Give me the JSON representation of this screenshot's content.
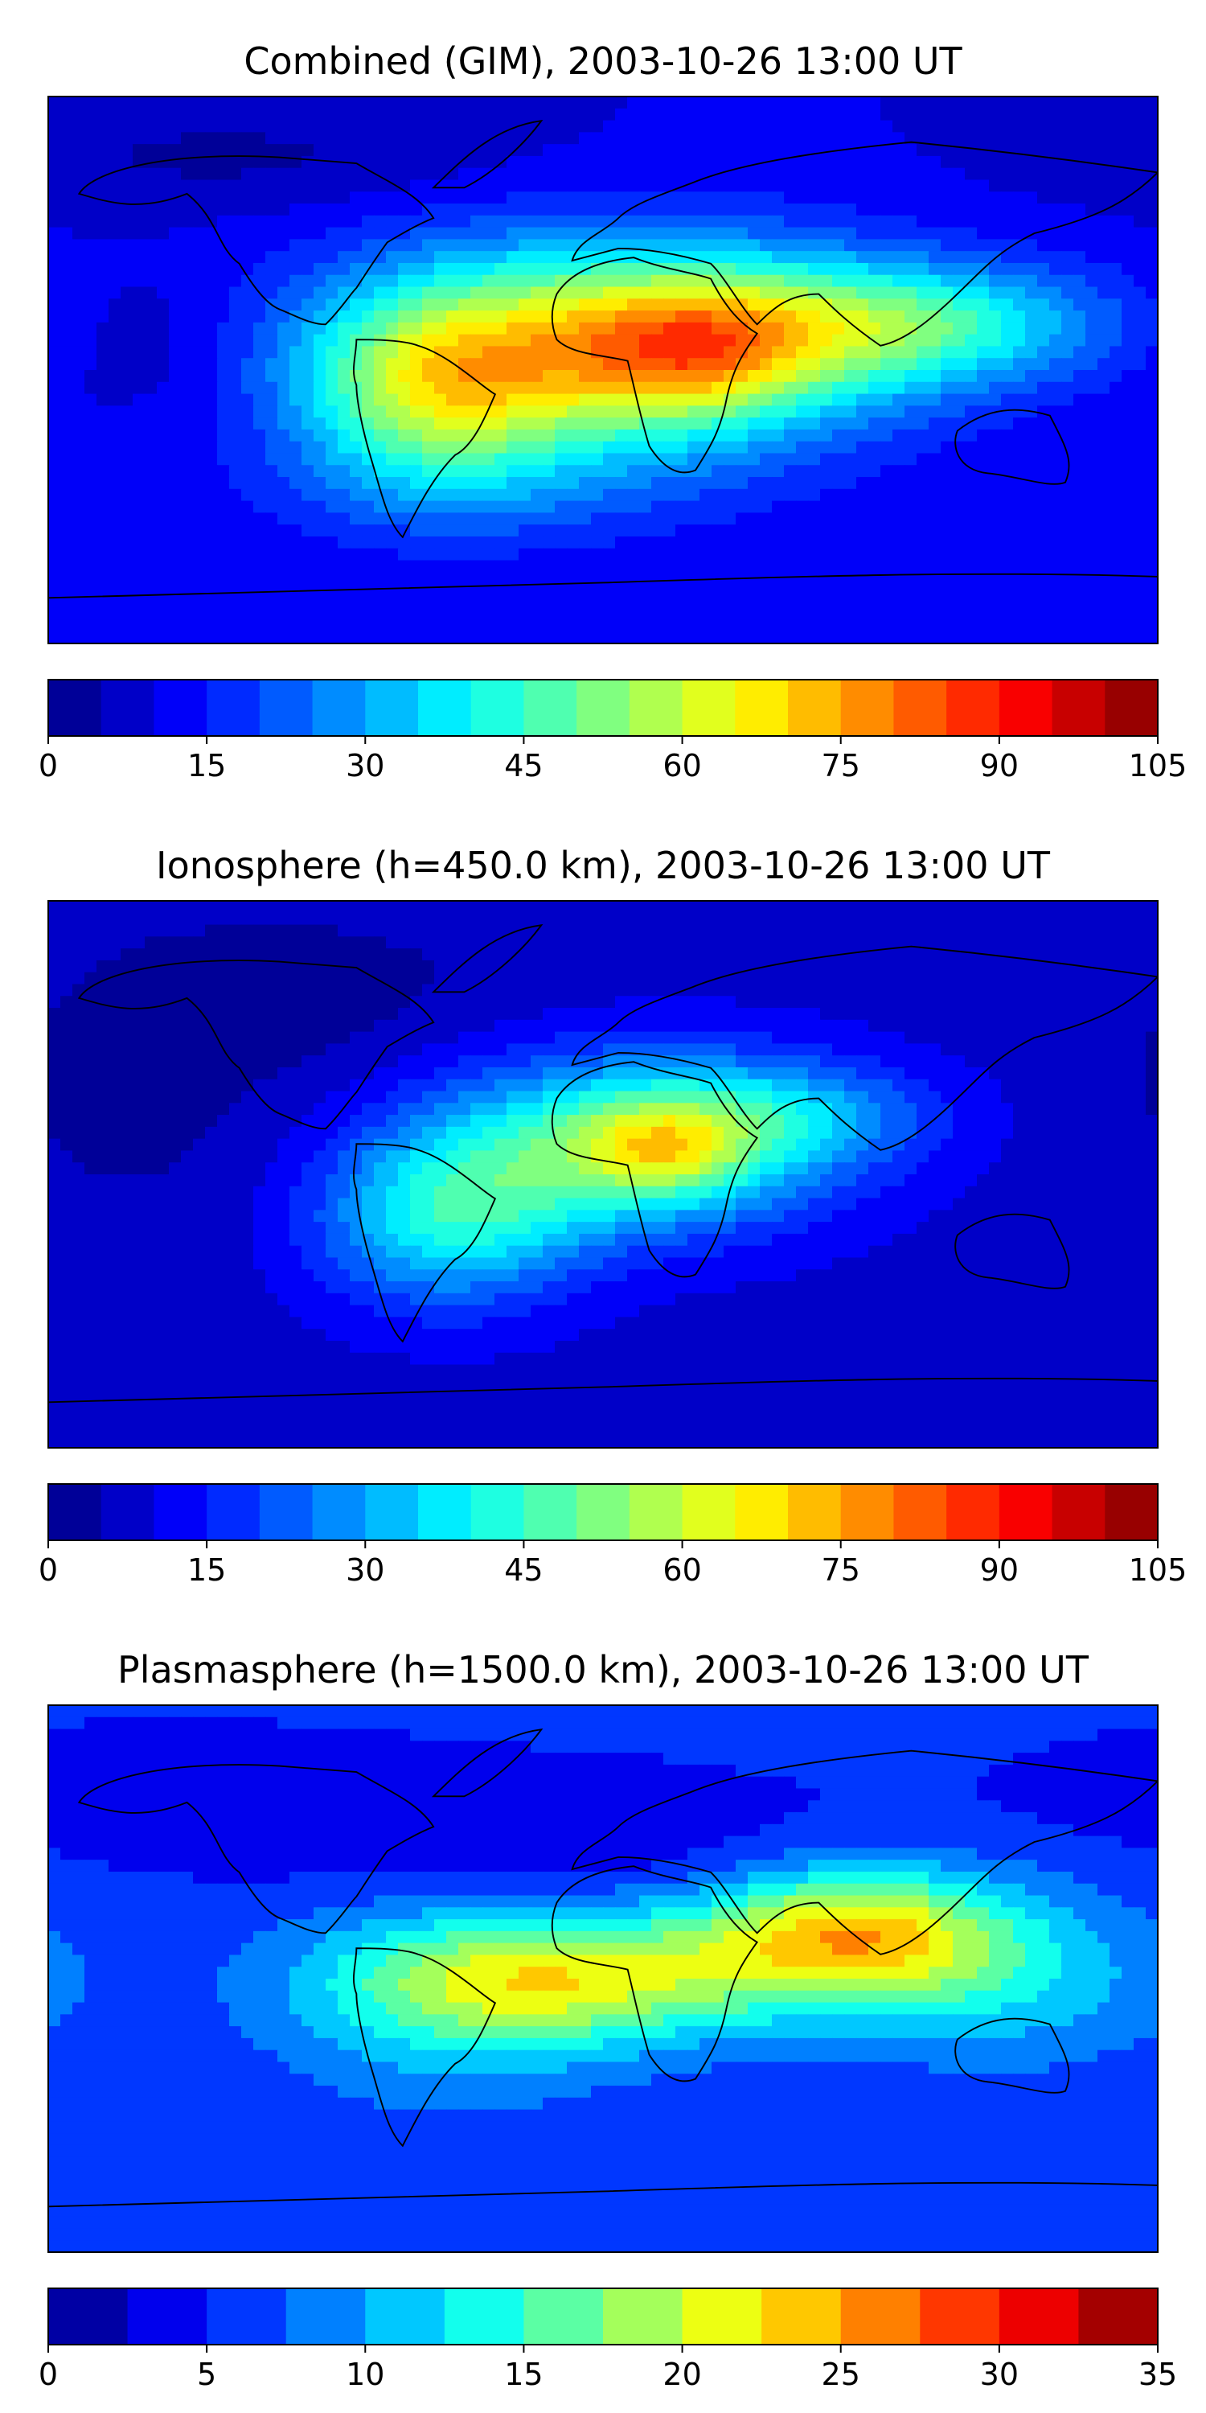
{
  "chart_data": [
    {
      "type": "heatmap",
      "title": "Combined (GIM), 2003-10-26 13:00 UT",
      "colorbar": {
        "min": 0,
        "max": 105,
        "step": 5,
        "ticks": [
          0,
          15,
          30,
          45,
          60,
          75,
          90,
          105
        ],
        "tick_labels": [
          "0",
          "15",
          "30",
          "45",
          "60",
          "75",
          "90",
          "105"
        ]
      },
      "field": {
        "background": 10,
        "peaks": [
          {
            "lon": 5,
            "lat": 8,
            "slon": 60,
            "slat": 24,
            "amp": 55
          },
          {
            "lon": 30,
            "lat": 6,
            "slon": 25,
            "slat": 15,
            "amp": 20
          },
          {
            "lon": -55,
            "lat": -8,
            "slon": 30,
            "slat": 22,
            "amp": 32
          },
          {
            "lon": 100,
            "lat": 15,
            "slon": 45,
            "slat": 14,
            "amp": 30
          },
          {
            "lon": -40,
            "lat": -40,
            "slon": 55,
            "slat": 15,
            "amp": 8
          },
          {
            "lon": -150,
            "lat": 10,
            "slon": 20,
            "slat": 15,
            "amp": -5
          },
          {
            "lon": -120,
            "lat": 70,
            "slon": 60,
            "slat": 12,
            "amp": -6
          }
        ]
      }
    },
    {
      "type": "heatmap",
      "title": "Ionosphere  (h=450.0 km), 2003-10-26 13:00 UT",
      "colorbar": {
        "min": 0,
        "max": 105,
        "step": 5,
        "ticks": [
          0,
          15,
          30,
          45,
          60,
          75,
          90,
          105
        ],
        "tick_labels": [
          "0",
          "15",
          "30",
          "45",
          "60",
          "75",
          "90",
          "105"
        ]
      },
      "field": {
        "background": 8,
        "peaks": [
          {
            "lon": 10,
            "lat": 10,
            "slon": 45,
            "slat": 20,
            "amp": 40
          },
          {
            "lon": 20,
            "lat": 8,
            "slon": 18,
            "slat": 10,
            "amp": 20
          },
          {
            "lon": -50,
            "lat": -15,
            "slon": 30,
            "slat": 20,
            "amp": 30
          },
          {
            "lon": 60,
            "lat": 20,
            "slon": 35,
            "slat": 12,
            "amp": 15
          },
          {
            "lon": -150,
            "lat": 20,
            "slon": 40,
            "slat": 30,
            "amp": -4
          },
          {
            "lon": -100,
            "lat": 60,
            "slon": 50,
            "slat": 20,
            "amp": -5
          }
        ]
      }
    },
    {
      "type": "heatmap",
      "title": "Plasmasphere (h=1500.0 km), 2003-10-26 13:00 UT",
      "colorbar": {
        "min": 0,
        "max": 35,
        "step": 2.5,
        "ticks": [
          0,
          5,
          10,
          15,
          20,
          25,
          30,
          35
        ],
        "tick_labels": [
          "0",
          "5",
          "10",
          "15",
          "20",
          "25",
          "30",
          "35"
        ]
      },
      "field": {
        "background": 5.5,
        "peaks": [
          {
            "lon": 80,
            "lat": 15,
            "slon": 35,
            "slat": 15,
            "amp": 16
          },
          {
            "lon": -10,
            "lat": 0,
            "slon": 50,
            "slat": 15,
            "amp": 14
          },
          {
            "lon": 130,
            "lat": 0,
            "slon": 40,
            "slat": 20,
            "amp": 6
          },
          {
            "lon": -50,
            "lat": -10,
            "slon": 40,
            "slat": 25,
            "amp": 5
          },
          {
            "lon": -20,
            "lat": 45,
            "slon": 60,
            "slat": 15,
            "amp": -3
          },
          {
            "lon": -140,
            "lat": 60,
            "slon": 60,
            "slat": 15,
            "amp": -2
          }
        ]
      }
    }
  ]
}
